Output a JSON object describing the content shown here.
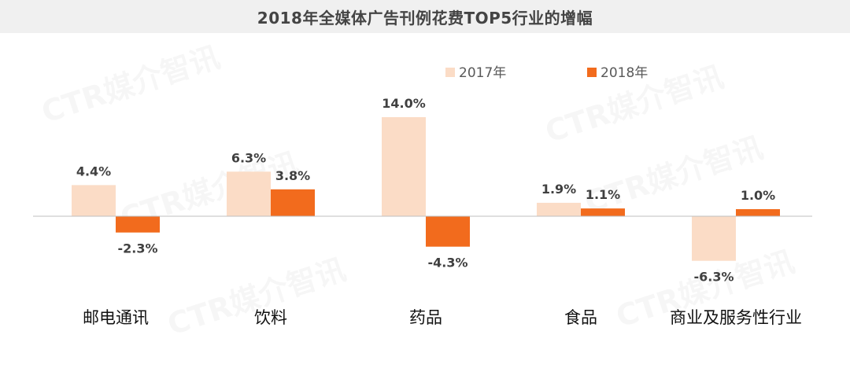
{
  "title": "2018年全媒体广告刊例花费TOP5行业的增幅",
  "watermark_text": "CTR媒介智讯",
  "colors": {
    "series_2017": "#fbdcc6",
    "series_2018": "#f26b1d",
    "title_bg": "#f0f0f0",
    "axis": "#bfbfbf"
  },
  "chart_data": {
    "type": "bar",
    "title": "2018年全媒体广告刊例花费TOP5行业的增幅",
    "categories": [
      "邮电通讯",
      "饮料",
      "药品",
      "食品",
      "商业及服务性行业"
    ],
    "series": [
      {
        "name": "2017年",
        "values": [
          4.4,
          6.3,
          14.0,
          1.9,
          -6.3
        ],
        "labels": [
          "4.4%",
          "6.3%",
          "14.0%",
          "1.9%",
          "-6.3%"
        ]
      },
      {
        "name": "2018年",
        "values": [
          -2.3,
          3.8,
          -4.3,
          1.1,
          1.0
        ],
        "labels": [
          "-2.3%",
          "3.8%",
          "-4.3%",
          "1.1%",
          "1.0%"
        ]
      }
    ],
    "value_unit": "%",
    "grid": false,
    "legend_position": "top-right",
    "ylim": [
      -8,
      16
    ]
  }
}
